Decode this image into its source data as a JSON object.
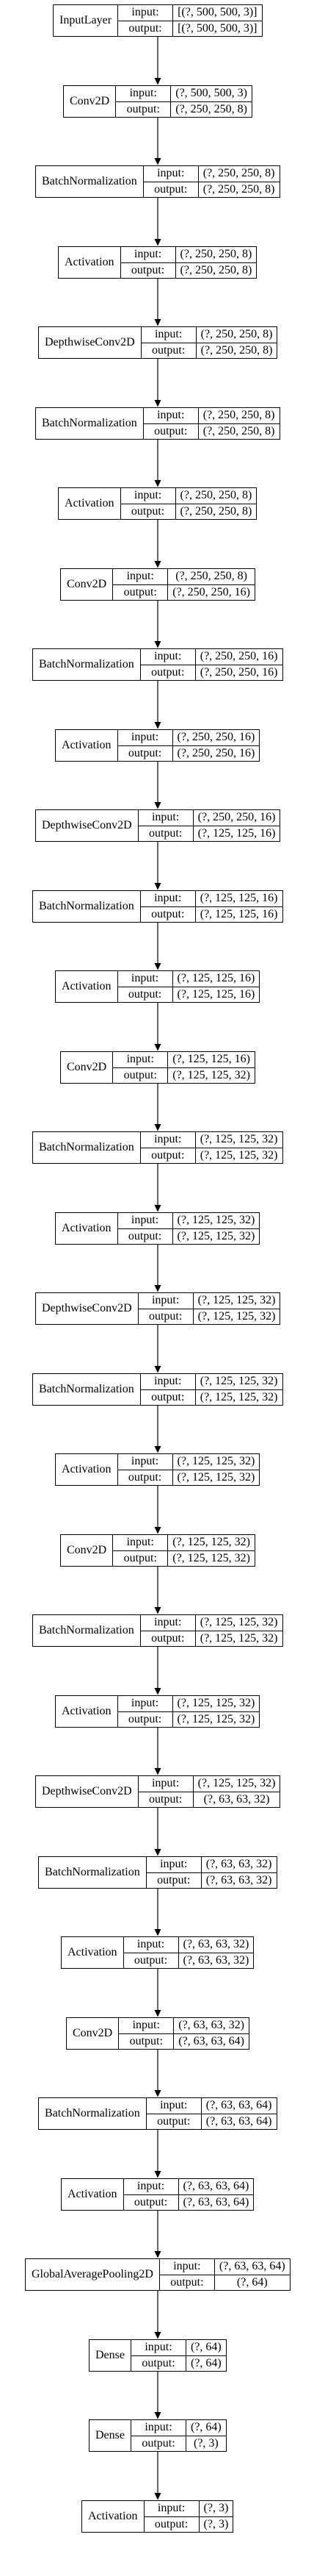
{
  "layers": [
    {
      "name": "InputLayer",
      "input": "[(?, 500, 500, 3)]",
      "output": "[(?, 500, 500, 3)]"
    },
    {
      "name": "Conv2D",
      "input": "(?, 500, 500, 3)",
      "output": "(?, 250, 250, 8)"
    },
    {
      "name": "BatchNormalization",
      "input": "(?, 250, 250, 8)",
      "output": "(?, 250, 250, 8)"
    },
    {
      "name": "Activation",
      "input": "(?, 250, 250, 8)",
      "output": "(?, 250, 250, 8)"
    },
    {
      "name": "DepthwiseConv2D",
      "input": "(?, 250, 250, 8)",
      "output": "(?, 250, 250, 8)"
    },
    {
      "name": "BatchNormalization",
      "input": "(?, 250, 250, 8)",
      "output": "(?, 250, 250, 8)"
    },
    {
      "name": "Activation",
      "input": "(?, 250, 250, 8)",
      "output": "(?, 250, 250, 8)"
    },
    {
      "name": "Conv2D",
      "input": "(?, 250, 250, 8)",
      "output": "(?, 250, 250, 16)"
    },
    {
      "name": "BatchNormalization",
      "input": "(?, 250, 250, 16)",
      "output": "(?, 250, 250, 16)"
    },
    {
      "name": "Activation",
      "input": "(?, 250, 250, 16)",
      "output": "(?, 250, 250, 16)"
    },
    {
      "name": "DepthwiseConv2D",
      "input": "(?, 250, 250, 16)",
      "output": "(?, 125, 125, 16)"
    },
    {
      "name": "BatchNormalization",
      "input": "(?, 125, 125, 16)",
      "output": "(?, 125, 125, 16)"
    },
    {
      "name": "Activation",
      "input": "(?, 125, 125, 16)",
      "output": "(?, 125, 125, 16)"
    },
    {
      "name": "Conv2D",
      "input": "(?, 125, 125, 16)",
      "output": "(?, 125, 125, 32)"
    },
    {
      "name": "BatchNormalization",
      "input": "(?, 125, 125, 32)",
      "output": "(?, 125, 125, 32)"
    },
    {
      "name": "Activation",
      "input": "(?, 125, 125, 32)",
      "output": "(?, 125, 125, 32)"
    },
    {
      "name": "DepthwiseConv2D",
      "input": "(?, 125, 125, 32)",
      "output": "(?, 125, 125, 32)"
    },
    {
      "name": "BatchNormalization",
      "input": "(?, 125, 125, 32)",
      "output": "(?, 125, 125, 32)"
    },
    {
      "name": "Activation",
      "input": "(?, 125, 125, 32)",
      "output": "(?, 125, 125, 32)"
    },
    {
      "name": "Conv2D",
      "input": "(?, 125, 125, 32)",
      "output": "(?, 125, 125, 32)"
    },
    {
      "name": "BatchNormalization",
      "input": "(?, 125, 125, 32)",
      "output": "(?, 125, 125, 32)"
    },
    {
      "name": "Activation",
      "input": "(?, 125, 125, 32)",
      "output": "(?, 125, 125, 32)"
    },
    {
      "name": "DepthwiseConv2D",
      "input": "(?, 125, 125, 32)",
      "output": "(?, 63, 63, 32)"
    },
    {
      "name": "BatchNormalization",
      "input": "(?, 63, 63, 32)",
      "output": "(?, 63, 63, 32)"
    },
    {
      "name": "Activation",
      "input": "(?, 63, 63, 32)",
      "output": "(?, 63, 63, 32)"
    },
    {
      "name": "Conv2D",
      "input": "(?, 63, 63, 32)",
      "output": "(?, 63, 63, 64)"
    },
    {
      "name": "BatchNormalization",
      "input": "(?, 63, 63, 64)",
      "output": "(?, 63, 63, 64)"
    },
    {
      "name": "Activation",
      "input": "(?, 63, 63, 64)",
      "output": "(?, 63, 63, 64)"
    },
    {
      "name": "GlobalAveragePooling2D",
      "input": "(?, 63, 63, 64)",
      "output": "(?, 64)"
    },
    {
      "name": "Dense",
      "input": "(?, 64)",
      "output": "(?, 64)"
    },
    {
      "name": "Dense",
      "input": "(?, 64)",
      "output": "(?, 3)"
    },
    {
      "name": "Activation",
      "input": "(?, 3)",
      "output": "(?, 3)"
    }
  ],
  "labels": {
    "input": "input:",
    "output": "output:"
  }
}
